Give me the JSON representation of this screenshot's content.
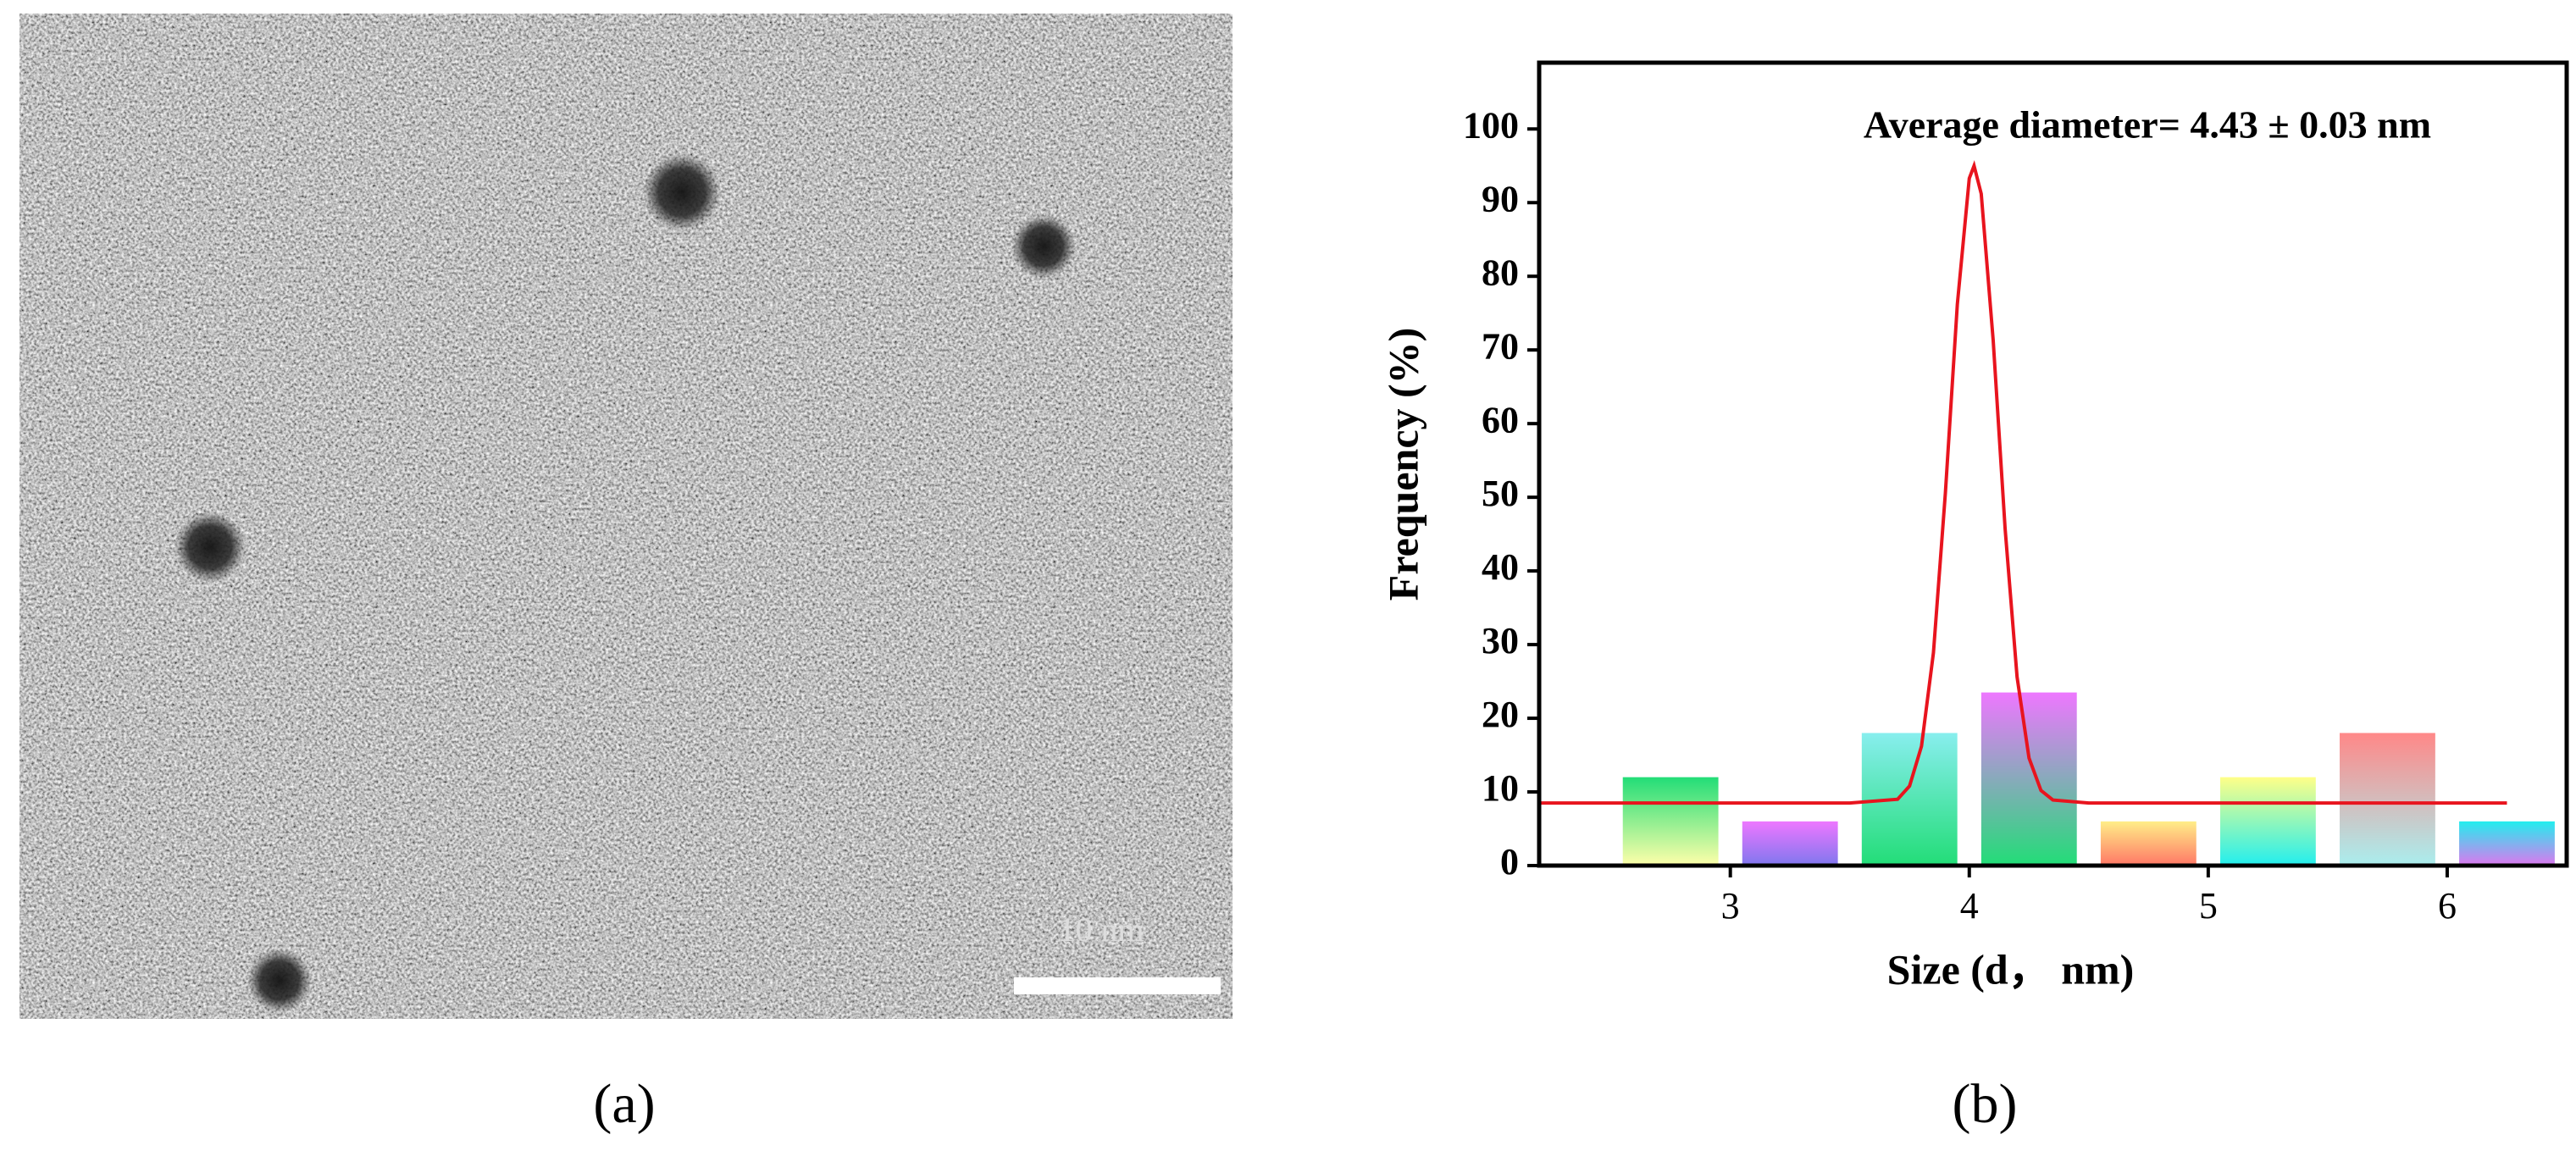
{
  "image": {
    "scale_bar": "10 nm",
    "panel_label": "(a)"
  },
  "chart_data": {
    "type": "bar",
    "panel_label": "(b)",
    "annotation": "Average diameter= 4.43 ± 0.03 nm",
    "x_label": "Size (d，  nm)",
    "y_label": "Frequency (%)",
    "xlim": [
      2.2,
      6.5
    ],
    "xticks": [
      3,
      4,
      5,
      6
    ],
    "ylim": [
      0,
      109
    ],
    "yticks": [
      0,
      10,
      20,
      30,
      40,
      50,
      60,
      70,
      80,
      90,
      100
    ],
    "series": [
      {
        "type": "bar",
        "x": [
          2.75,
          3.25,
          3.75,
          4.25,
          4.75,
          5.25,
          5.75,
          6.25
        ],
        "values": [
          12,
          6,
          18,
          23.5,
          6,
          12,
          18,
          6
        ],
        "colors": [
          [
            "#22dd77",
            "#ffffaa"
          ],
          [
            "#ee77ff",
            "#7f77ee"
          ],
          [
            "#88eeee",
            "#22dd77"
          ],
          [
            "#ee77ff",
            "#22dd77"
          ],
          [
            "#ffee88",
            "#ff7766"
          ],
          [
            "#ffff88",
            "#22eeee"
          ],
          [
            "#ff8888",
            "#aaeeee"
          ],
          [
            "#22eeee",
            "#dd77ee"
          ]
        ]
      },
      {
        "type": "line",
        "color": "#e8141e",
        "x": [
          2.2,
          3.0,
          3.5,
          3.7,
          3.75,
          3.8,
          3.85,
          3.9,
          3.95,
          4.0,
          4.02,
          4.05,
          4.1,
          4.15,
          4.2,
          4.25,
          4.3,
          4.35,
          4.5,
          5.0,
          6.0,
          6.25
        ],
        "values": [
          8.5,
          8.5,
          8.5,
          9.0,
          10.8,
          16.2,
          28.9,
          50.6,
          76.2,
          93.3,
          95,
          91.2,
          71.3,
          45.7,
          25.6,
          14.6,
          10.2,
          8.9,
          8.5,
          8.5,
          8.5,
          8.5
        ]
      }
    ]
  }
}
